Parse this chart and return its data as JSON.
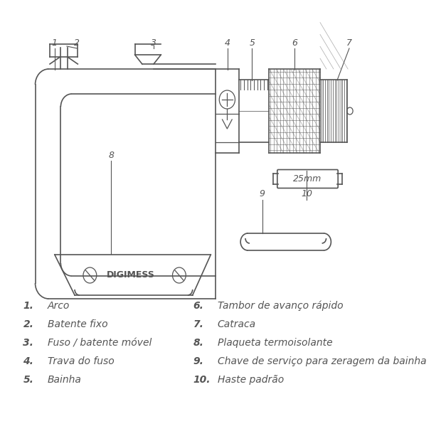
{
  "background_color": "#ffffff",
  "text_color": "#555555",
  "legend_items_left": [
    {
      "num": "1.",
      "text": "Arco"
    },
    {
      "num": "2.",
      "text": "Batente fixo"
    },
    {
      "num": "3.",
      "text": "Fuso / batente móvel"
    },
    {
      "num": "4.",
      "text": "Trava do fuso"
    },
    {
      "num": "5.",
      "text": "Bainha"
    }
  ],
  "legend_items_right": [
    {
      "num": "6.",
      "text": "Tambor de avanço rápido"
    },
    {
      "num": "7.",
      "text": "Catraca"
    },
    {
      "num": "8.",
      "text": "Plaqueta termoisolante"
    },
    {
      "num": "9.",
      "text": "Chave de serviço para zeragem da bainha"
    },
    {
      "num": "10.",
      "text": "Haste padrão"
    }
  ],
  "digimess_label": "DIGIMESS",
  "standard_label": "25mm",
  "line_color": "#555555",
  "callout_color": "#555555"
}
